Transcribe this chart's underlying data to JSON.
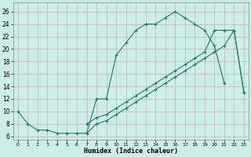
{
  "title": "",
  "xlabel": "Humidex (Indice chaleur)",
  "ylabel": "",
  "background_color": "#cceee8",
  "line_color": "#1a7a6e",
  "grid_color_major": "#b0b0b0",
  "grid_color_minor": "#d8d8d8",
  "xlim": [
    -0.5,
    23.5
  ],
  "ylim": [
    5.5,
    27.5
  ],
  "xticks": [
    0,
    1,
    2,
    3,
    4,
    5,
    6,
    7,
    8,
    9,
    10,
    11,
    12,
    13,
    14,
    15,
    16,
    17,
    18,
    19,
    20,
    21,
    22,
    23
  ],
  "yticks": [
    6,
    8,
    10,
    12,
    14,
    16,
    18,
    20,
    22,
    24,
    26
  ],
  "line1_x": [
    0,
    1,
    2,
    3,
    4,
    5,
    6,
    7,
    8,
    9,
    10,
    11,
    12,
    13,
    14,
    15,
    16,
    17,
    18,
    19,
    20,
    21
  ],
  "line1_y": [
    10,
    8,
    7,
    7,
    6.5,
    6.5,
    6.5,
    6.5,
    12,
    12,
    19,
    21,
    23,
    24,
    24,
    25,
    26,
    25,
    24,
    23,
    20.5,
    14.5
  ],
  "line2_x": [
    7,
    8,
    9,
    10,
    11,
    12,
    13,
    14,
    15,
    16,
    17,
    18,
    19,
    20,
    21,
    22,
    23
  ],
  "line2_y": [
    8,
    9,
    9.5,
    10.5,
    11.5,
    12.5,
    13.5,
    14.5,
    15.5,
    16.5,
    17.5,
    18.5,
    19.5,
    23,
    23,
    23,
    13
  ],
  "line3_x": [
    7,
    8,
    9,
    10,
    11,
    12,
    13,
    14,
    15,
    16,
    17,
    18,
    19,
    20,
    21,
    22,
    23
  ],
  "line3_y": [
    6.5,
    8,
    8.5,
    9.5,
    10.5,
    11.5,
    12.5,
    13.5,
    14.5,
    15.5,
    16.5,
    17.5,
    18.5,
    19.5,
    20.5,
    23,
    13
  ]
}
